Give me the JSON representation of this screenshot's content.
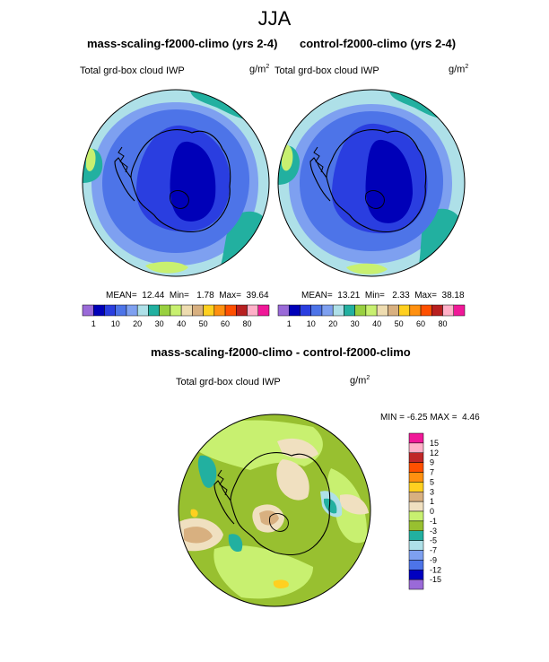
{
  "title": "JJA",
  "panel_left": {
    "title": "mass-scaling-f2000-climo (yrs 2-4)",
    "label": "Total grd-box cloud IWP",
    "unit_base": "g/m",
    "unit_exp": "2",
    "stats": {
      "mean_label": "MEAN=",
      "mean": "12.44",
      "min_label": "Min=",
      "min": "1.78",
      "max_label": "Max=",
      "max": "39.64"
    }
  },
  "panel_right": {
    "title": "control-f2000-climo (yrs 2-4)",
    "label": "Total grd-box cloud IWP",
    "unit_base": "g/m",
    "unit_exp": "2",
    "stats": {
      "mean_label": "MEAN=",
      "mean": "13.21",
      "min_label": "Min=",
      "min": "2.33",
      "max_label": "Max=",
      "max": "38.18"
    }
  },
  "panel_diff": {
    "title": "mass-scaling-f2000-climo - control-f2000-climo",
    "label": "Total grd-box cloud IWP",
    "unit_base": "g/m",
    "unit_exp": "2",
    "stats": {
      "min_label": "MIN =",
      "min": "-6.25",
      "max_label": "MAX =",
      "max": "4.46"
    }
  },
  "chart_data": [
    {
      "type": "heatmap",
      "name": "mass-scaling-f2000-climo (yrs 2-4)",
      "projection": "south-polar stereographic",
      "variable": "Total grd-box cloud IWP",
      "units": "g/m2",
      "mean": 12.44,
      "min": 1.78,
      "max": 39.64,
      "colorbar_levels": [
        1,
        5,
        10,
        15,
        20,
        25,
        30,
        35,
        40,
        45,
        50,
        55,
        60,
        70,
        80
      ],
      "colorbar_tick_labels": [
        "1",
        "10",
        "20",
        "30",
        "40",
        "50",
        "60",
        "80"
      ],
      "colorbar_colors": [
        "#9a6ad8",
        "#0000b8",
        "#2a3ee0",
        "#4d74e8",
        "#7ea0f0",
        "#aee0e8",
        "#22b0a0",
        "#98d040",
        "#c8f070",
        "#eedcb0",
        "#d8b080",
        "#ffd020",
        "#ff9010",
        "#ff5000",
        "#b82020",
        "#ffb0c8",
        "#f01898"
      ]
    },
    {
      "type": "heatmap",
      "name": "control-f2000-climo (yrs 2-4)",
      "projection": "south-polar stereographic",
      "variable": "Total grd-box cloud IWP",
      "units": "g/m2",
      "mean": 13.21,
      "min": 2.33,
      "max": 38.18,
      "colorbar_levels": [
        1,
        5,
        10,
        15,
        20,
        25,
        30,
        35,
        40,
        45,
        50,
        55,
        60,
        70,
        80
      ],
      "colorbar_tick_labels": [
        "1",
        "10",
        "20",
        "30",
        "40",
        "50",
        "60",
        "80"
      ],
      "colorbar_colors": [
        "#9a6ad8",
        "#0000b8",
        "#2a3ee0",
        "#4d74e8",
        "#7ea0f0",
        "#aee0e8",
        "#22b0a0",
        "#98d040",
        "#c8f070",
        "#eedcb0",
        "#d8b080",
        "#ffd020",
        "#ff9010",
        "#ff5000",
        "#b82020",
        "#ffb0c8",
        "#f01898"
      ]
    },
    {
      "type": "heatmap",
      "name": "mass-scaling-f2000-climo - control-f2000-climo",
      "projection": "south-polar stereographic",
      "variable": "Total grd-box cloud IWP",
      "units": "g/m2",
      "min": -6.25,
      "max": 4.46,
      "colorbar_levels": [
        -15,
        -12,
        -9,
        -7,
        -5,
        -3,
        -1,
        0,
        1,
        3,
        5,
        7,
        9,
        12,
        15
      ],
      "colorbar_tick_labels": [
        "15",
        "12",
        "9",
        "7",
        "5",
        "3",
        "1",
        "0",
        "-1",
        "-3",
        "-5",
        "-7",
        "-9",
        "-12",
        "-15"
      ],
      "colorbar_colors": [
        "#f01898",
        "#ffb0c8",
        "#c02828",
        "#ff5000",
        "#ff9010",
        "#ffd020",
        "#d8b080",
        "#f0e0c0",
        "#c8f070",
        "#98c030",
        "#22b0a0",
        "#aee0e8",
        "#7ea0f0",
        "#4d74e8",
        "#0000c0",
        "#9a6ad8"
      ]
    }
  ],
  "colors": {
    "coast": "#000000",
    "background": "#ffffff"
  }
}
